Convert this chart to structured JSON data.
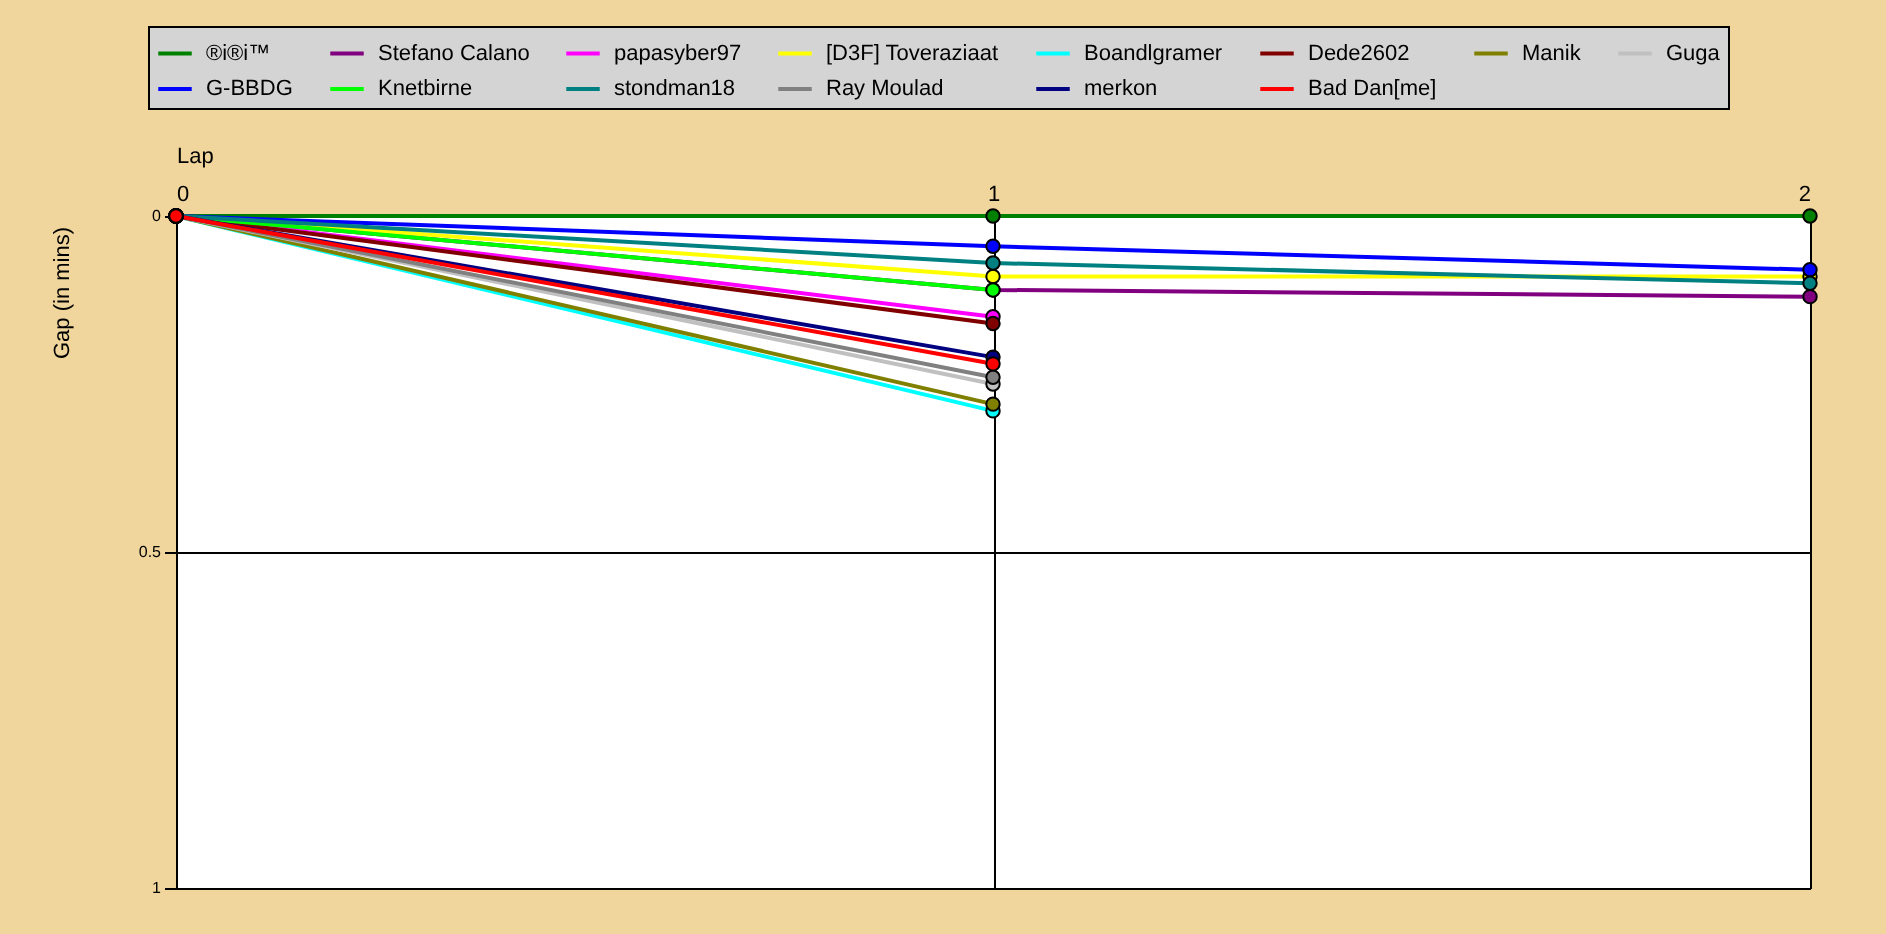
{
  "chart_data": {
    "type": "line",
    "xlabel": "Lap",
    "ylabel": "Gap (in mins)",
    "x": [
      0,
      1,
      2
    ],
    "xlim": [
      0,
      2
    ],
    "xticks": [
      0,
      1,
      2
    ],
    "ylim": [
      1,
      0
    ],
    "yticks": [
      0,
      0.5,
      1
    ],
    "grid": true,
    "legend": "top",
    "marker": "circle",
    "line_style": "solid",
    "series": [
      {
        "name": "®i®i™",
        "color": "#008000",
        "values": [
          0,
          0,
          0
        ]
      },
      {
        "name": "Stefano Calano",
        "color": "#800080",
        "values": [
          0,
          0.11,
          0.12
        ]
      },
      {
        "name": "papasyber97",
        "color": "#ff00ff",
        "values": [
          0,
          0.15,
          null
        ]
      },
      {
        "name": "[D3F] Toveraziaat",
        "color": "#ffff00",
        "values": [
          0,
          0.09,
          0.09
        ]
      },
      {
        "name": "Boandlgramer",
        "color": "#00ffff",
        "values": [
          0,
          0.29,
          null
        ]
      },
      {
        "name": "Dede2602",
        "color": "#800000",
        "values": [
          0,
          0.16,
          null
        ]
      },
      {
        "name": "Manik",
        "color": "#808000",
        "values": [
          0,
          0.28,
          null
        ]
      },
      {
        "name": "Guga",
        "color": "#c0c0c0",
        "values": [
          0,
          0.25,
          null
        ]
      },
      {
        "name": "G-BBDG",
        "color": "#0000ff",
        "values": [
          0,
          0.045,
          0.08
        ]
      },
      {
        "name": "Knetbirne",
        "color": "#00ff00",
        "values": [
          0,
          0.11,
          null
        ]
      },
      {
        "name": "stondman18",
        "color": "#008080",
        "values": [
          0,
          0.07,
          0.1
        ]
      },
      {
        "name": "Ray Moulad",
        "color": "#808080",
        "values": [
          0,
          0.24,
          null
        ]
      },
      {
        "name": "merkon",
        "color": "#000080",
        "values": [
          0,
          0.21,
          null
        ]
      },
      {
        "name": "Bad Dan[me]",
        "color": "#ff0000",
        "values": [
          0,
          0.22,
          null
        ]
      }
    ]
  }
}
